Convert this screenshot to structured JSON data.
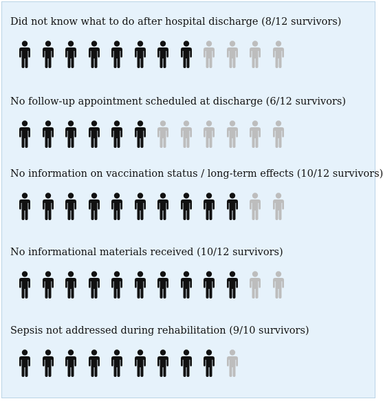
{
  "colors": {
    "background": "#e6f2fb",
    "affected": "#111111",
    "unaffected": "#bdbdbd"
  },
  "icon": "person-icon",
  "chart_data": {
    "type": "pictograph",
    "rows": [
      {
        "label": "Did not know what to do after hospital discharge (8/12 survivors)",
        "affected": 8,
        "total": 12
      },
      {
        "label": "No follow-up appointment scheduled at discharge (6/12 survivors)",
        "affected": 6,
        "total": 12
      },
      {
        "label": "No information on vaccination status / long-term effects (10/12 survivors)",
        "affected": 10,
        "total": 12
      },
      {
        "label": "No informational materials received (10/12 survivors)",
        "affected": 10,
        "total": 12
      },
      {
        "label": "Sepsis not addressed during rehabilitation (9/10 survivors)",
        "affected": 9,
        "total": 10
      }
    ]
  }
}
